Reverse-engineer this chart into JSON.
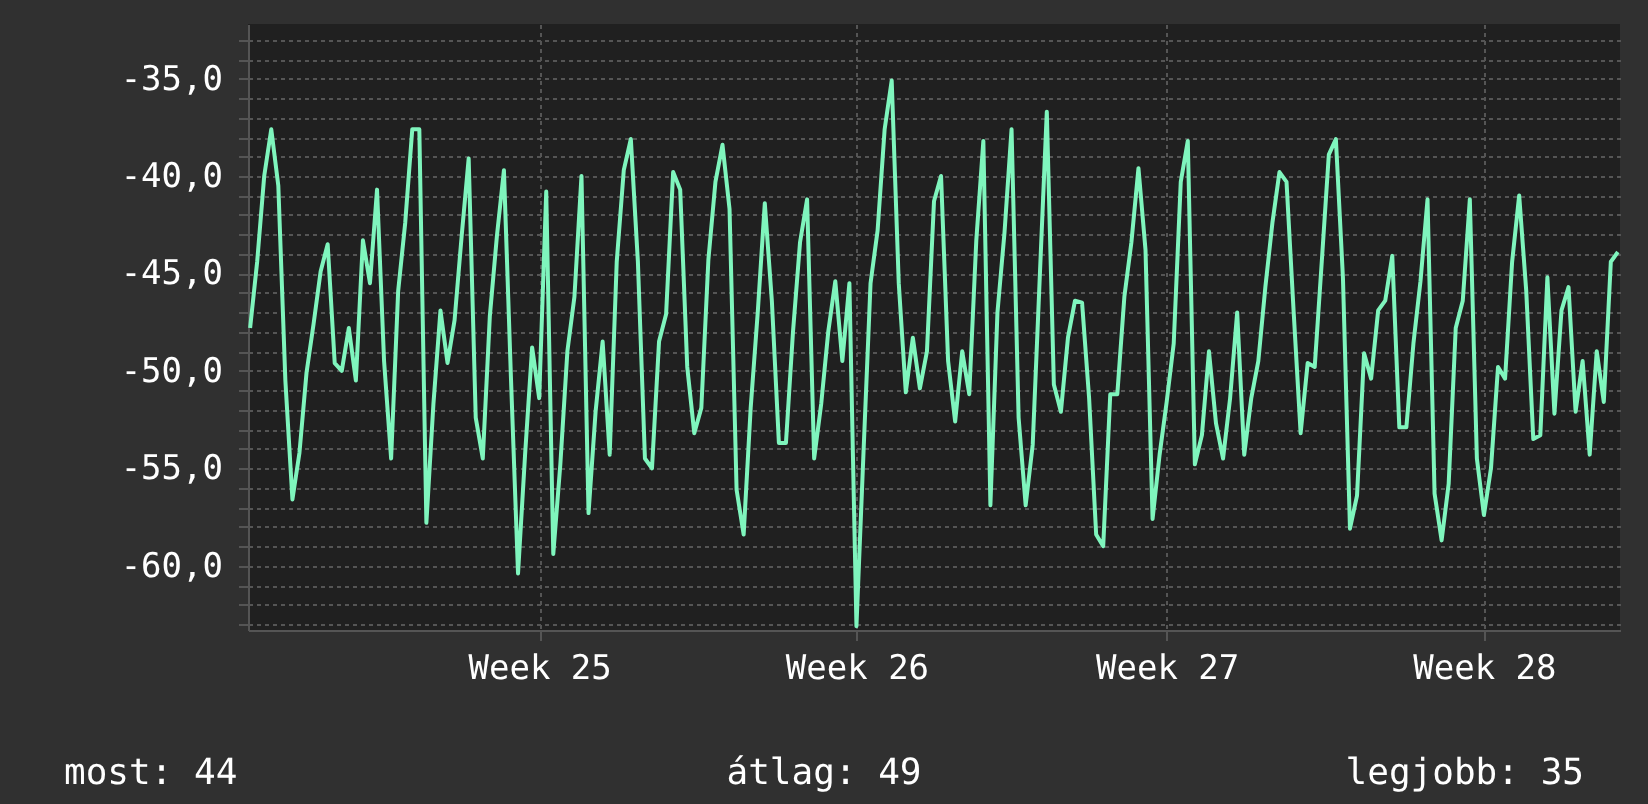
{
  "chart_data": {
    "type": "line",
    "color": "#7ff5bd",
    "categories": [
      null,
      null,
      null,
      null,
      null,
      null,
      null,
      null,
      null,
      null,
      null,
      null,
      null,
      null,
      null,
      null,
      null,
      null,
      null,
      null,
      null,
      null,
      null,
      null,
      null,
      null,
      null,
      null,
      null,
      null,
      null,
      null,
      null,
      null,
      null,
      null,
      null,
      null,
      null,
      null,
      null,
      "Week 25",
      null,
      null,
      null,
      null,
      null,
      null,
      null,
      null,
      null,
      null,
      null,
      null,
      null,
      null,
      null,
      null,
      null,
      null,
      null,
      null,
      null,
      null,
      null,
      null,
      null,
      null,
      null,
      null,
      null,
      null,
      null,
      null,
      null,
      null,
      null,
      null,
      null,
      null,
      null,
      null,
      null,
      null,
      null,
      null,
      "Week 26",
      null,
      null,
      null,
      null,
      null,
      null,
      null,
      null,
      null,
      null,
      null,
      null,
      null,
      null,
      null,
      null,
      null,
      null,
      null,
      null,
      null,
      null,
      null,
      null,
      null,
      null,
      null,
      null,
      null,
      null,
      null,
      null,
      null,
      null,
      null,
      null,
      null,
      null,
      null,
      null,
      null,
      null,
      null,
      "Week 27",
      null,
      null,
      null,
      null,
      null,
      null,
      null,
      null,
      null,
      null,
      null,
      null,
      null,
      null,
      null,
      null,
      null,
      null,
      null,
      null,
      null,
      null,
      null,
      null,
      null,
      null,
      null,
      null,
      null,
      null,
      null,
      null,
      null,
      null,
      null,
      null,
      null,
      null,
      null,
      null,
      null,
      null,
      null,
      null,
      "Week 28",
      null,
      null,
      null,
      null,
      null,
      null,
      null,
      null,
      null,
      null,
      null,
      null,
      null,
      null,
      null,
      null,
      null,
      null,
      null
    ],
    "values": [
      -47.8,
      -44.4,
      -40,
      -37.6,
      -40.5,
      -50.5,
      -56.6,
      -54.2,
      -50.1,
      -47.6,
      -44.9,
      -43.5,
      -49.6,
      -50,
      -47.8,
      -50.5,
      -43.3,
      -45.5,
      -40.7,
      -49.5,
      -54.5,
      -45.9,
      -42.4,
      -37.6,
      -37.6,
      -57.8,
      -51.7,
      -46.9,
      -49.6,
      -47.4,
      -43.1,
      -39.1,
      -52.4,
      -54.5,
      -47.2,
      -43.1,
      -39.7,
      -50.4,
      -60.4,
      -54.3,
      -48.8,
      -51.4,
      -40.8,
      -59.4,
      -54.8,
      -49,
      -46.2,
      -40,
      -57.3,
      -52.1,
      -48.5,
      -54.3,
      -44.4,
      -39.7,
      -38.1,
      -44.4,
      -54.5,
      -55,
      -48.5,
      -47.1,
      -39.8,
      -40.7,
      -49.8,
      -53.2,
      -51.9,
      -44.3,
      -40.3,
      -38.4,
      -41.7,
      -56.1,
      -58.4,
      -51.9,
      -47,
      -41.4,
      -46.4,
      -53.7,
      -53.7,
      -48,
      -43.4,
      -41.2,
      -54.5,
      -51.7,
      -48,
      -45.4,
      -49.5,
      -45.5,
      -63.1,
      -54.2,
      -45.5,
      -42.8,
      -37.6,
      -35.1,
      -45.5,
      -51.1,
      -48.3,
      -50.9,
      -49,
      -41.3,
      -40,
      -49.5,
      -52.6,
      -49,
      -51.2,
      -43.3,
      -38.2,
      -56.9,
      -47,
      -42.9,
      -37.6,
      -52.4,
      -56.9,
      -53.8,
      -45.2,
      -36.7,
      -50.7,
      -52.1,
      -48.3,
      -46.4,
      -46.5,
      -51.4,
      -58.4,
      -59,
      -51.2,
      -51.2,
      -46.2,
      -43.4,
      -39.6,
      -43.8,
      -57.6,
      -54.3,
      -51.6,
      -48.6,
      -40.3,
      -38.2,
      -54.8,
      -53.3,
      -49,
      -52.7,
      -54.5,
      -51.4,
      -47,
      -54.3,
      -51.4,
      -49.5,
      -45.7,
      -42.4,
      -39.8,
      -40.3,
      -46.9,
      -53.2,
      -49.6,
      -49.8,
      -44.4,
      -38.9,
      -38.1,
      -45.2,
      -58.1,
      -56.4,
      -49.1,
      -50.4,
      -46.9,
      -46.4,
      -44.1,
      -52.9,
      -52.9,
      -48.6,
      -45.4,
      -41.2,
      -56.3,
      -58.7,
      -55.8,
      -47.8,
      -46.4,
      -41.2,
      -54.5,
      -57.4,
      -55,
      -49.8,
      -50.4,
      -44.4,
      -41,
      -45.9,
      -53.5,
      -53.3,
      -45.2,
      -52.2,
      -46.9,
      -45.7,
      -52.1,
      -49.5,
      -54.3,
      -49,
      -51.6,
      -44.4,
      -43.9
    ],
    "ylim": [
      -63.3,
      -32.2
    ],
    "grid": true,
    "yticks": [
      {
        "value": -63,
        "label": null
      },
      {
        "value": -62,
        "label": null
      },
      {
        "value": -61,
        "label": null
      },
      {
        "value": -60,
        "label": "-60,0"
      },
      {
        "value": -59,
        "label": null
      },
      {
        "value": -58,
        "label": null
      },
      {
        "value": -57,
        "label": null
      },
      {
        "value": -56,
        "label": null
      },
      {
        "value": -55,
        "label": "-55,0"
      },
      {
        "value": -54,
        "label": null
      },
      {
        "value": -53,
        "label": null
      },
      {
        "value": -52,
        "label": null
      },
      {
        "value": -51,
        "label": null
      },
      {
        "value": -50,
        "label": "-50,0"
      },
      {
        "value": -49,
        "label": null
      },
      {
        "value": -48,
        "label": null
      },
      {
        "value": -47,
        "label": null
      },
      {
        "value": -46,
        "label": null
      },
      {
        "value": -45,
        "label": "-45,0"
      },
      {
        "value": -44,
        "label": null
      },
      {
        "value": -43,
        "label": null
      },
      {
        "value": -42,
        "label": null
      },
      {
        "value": -41,
        "label": null
      },
      {
        "value": -40,
        "label": "-40,0"
      },
      {
        "value": -39,
        "label": null
      },
      {
        "value": -38,
        "label": null
      },
      {
        "value": -37,
        "label": null
      },
      {
        "value": -36,
        "label": null
      },
      {
        "value": -35,
        "label": "-35,0"
      },
      {
        "value": -34,
        "label": null
      },
      {
        "value": -33,
        "label": null
      }
    ],
    "annotations": [
      "most: 44",
      "átlag: 49",
      "legjobb: 35"
    ]
  }
}
